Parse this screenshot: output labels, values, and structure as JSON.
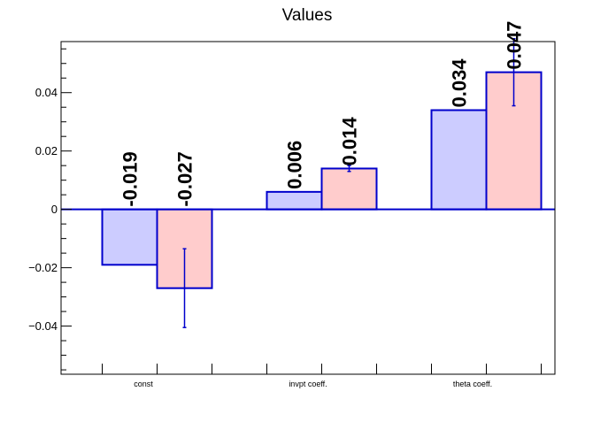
{
  "chart_data": {
    "type": "bar",
    "title": "Values",
    "categories": [
      "const",
      "invpt coeff.",
      "theta coeff."
    ],
    "series": [
      {
        "color": "#ccccff",
        "values": [
          -0.019,
          0.006,
          0.034
        ],
        "labels": [
          "-0.019",
          "0.006",
          "0.034"
        ],
        "errors": [
          0,
          0,
          0
        ]
      },
      {
        "color": "#ffcccc",
        "values": [
          -0.027,
          0.014,
          0.047
        ],
        "labels": [
          "-0.027",
          "0.014",
          "0.047"
        ],
        "errors": [
          0.0135,
          0.001,
          0.0115
        ]
      }
    ],
    "yticks": [
      {
        "value": 0.04,
        "label": "0.04"
      },
      {
        "value": 0.02,
        "label": "0.02"
      },
      {
        "value": 0,
        "label": "0"
      },
      {
        "value": -0.02,
        "label": "−0.02"
      },
      {
        "value": -0.04,
        "label": "−0.04"
      }
    ],
    "ylim": [
      -0.0565,
      0.0575
    ],
    "xlabel": "",
    "ylabel": "",
    "grid": false,
    "edge_color": "#0000cc"
  }
}
